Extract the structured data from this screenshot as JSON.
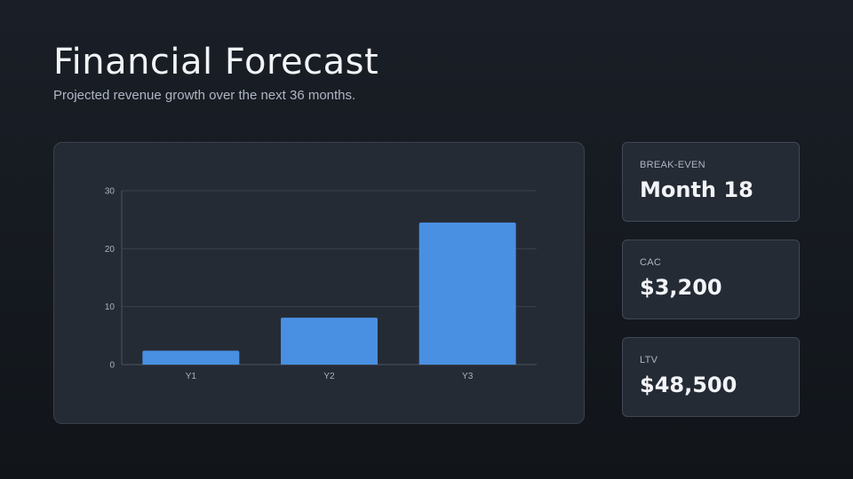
{
  "header": {
    "title": "Financial Forecast",
    "subtitle": "Projected revenue growth over the next 36 months."
  },
  "chart_data": {
    "type": "bar",
    "categories": [
      "Y1",
      "Y2",
      "Y3"
    ],
    "values": [
      2.4,
      8.1,
      24.5
    ],
    "title": "",
    "xlabel": "",
    "ylabel": "",
    "ylim": [
      0,
      30
    ],
    "yticks": [
      0,
      10,
      20,
      30
    ],
    "grid": true,
    "bar_color": "#4a90e2"
  },
  "stats": [
    {
      "label": "BREAK-EVEN",
      "value": "Month 18"
    },
    {
      "label": "CAC",
      "value": "$3,200"
    },
    {
      "label": "LTV",
      "value": "$48,500"
    }
  ],
  "colors": {
    "background": "#11151a",
    "card": "#252b35",
    "accent": "#4a90e2"
  }
}
